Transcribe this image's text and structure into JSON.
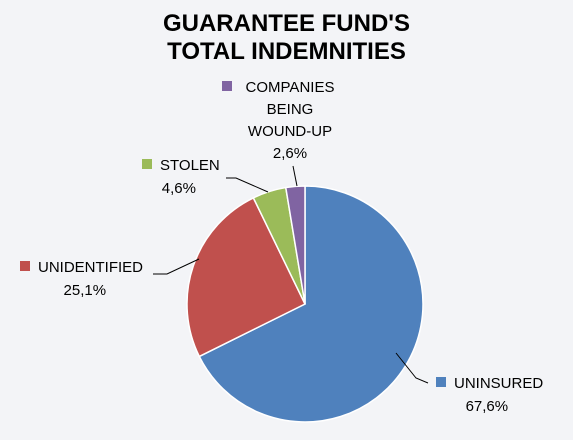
{
  "chart_data": {
    "type": "pie",
    "title_lines": [
      "GUARANTEE FUND'S",
      "TOTAL INDEMNITIES"
    ],
    "slices": [
      {
        "name": "UNINSURED",
        "name_lines": [
          "UNINSURED"
        ],
        "value": 67.6,
        "value_label": "67,6%",
        "color": "#4f81bd"
      },
      {
        "name": "UNIDENTIFIED",
        "name_lines": [
          "UNIDENTIFIED"
        ],
        "value": 25.1,
        "value_label": "25,1%",
        "color": "#c0504d"
      },
      {
        "name": "STOLEN",
        "name_lines": [
          "STOLEN"
        ],
        "value": 4.6,
        "value_label": "4,6%",
        "color": "#9bbb59"
      },
      {
        "name": "COMPANIES BEING WOUND-UP",
        "name_lines": [
          "COMPANIES",
          "BEING",
          "WOUND-UP"
        ],
        "value": 2.6,
        "value_label": "2,6%",
        "color": "#8064a2"
      }
    ],
    "legend": "none",
    "data_labels": "outside with leader lines"
  }
}
